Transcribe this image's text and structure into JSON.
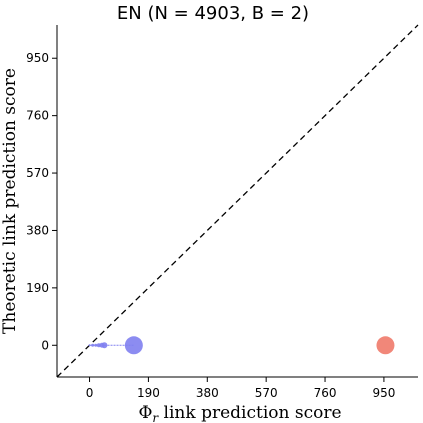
{
  "chart_data": {
    "type": "scatter",
    "title": "EN (N = 4903, B = 2)",
    "xlabel": "Φr link prediction score",
    "xlabel_main": "Φ",
    "xlabel_sub": "r",
    "xlabel_rest": " link prediction score",
    "ylabel": "Theoretic link prediction score",
    "xlim": [
      -105,
      1060
    ],
    "ylim": [
      -105,
      1060
    ],
    "xticks": [
      0,
      190,
      380,
      570,
      760,
      950
    ],
    "yticks": [
      0,
      190,
      380,
      570,
      760,
      950
    ],
    "reference_line": "dashed y = x",
    "grid": false,
    "series": [
      {
        "color": "#8080f0",
        "points": [
          {
            "x": 143,
            "y": 0,
            "size": 18
          },
          {
            "x": 48,
            "y": 0,
            "size": 6
          },
          {
            "x": 40,
            "y": 0,
            "size": 5
          },
          {
            "x": 30,
            "y": 0,
            "size": 4
          },
          {
            "x": 20,
            "y": 0,
            "size": 3
          },
          {
            "x": 10,
            "y": 0,
            "size": 3
          },
          {
            "x": 0,
            "y": 0,
            "size": 2
          }
        ]
      },
      {
        "color": "#f07a6a",
        "points": [
          {
            "x": 955,
            "y": 0,
            "size": 18
          }
        ]
      }
    ]
  }
}
